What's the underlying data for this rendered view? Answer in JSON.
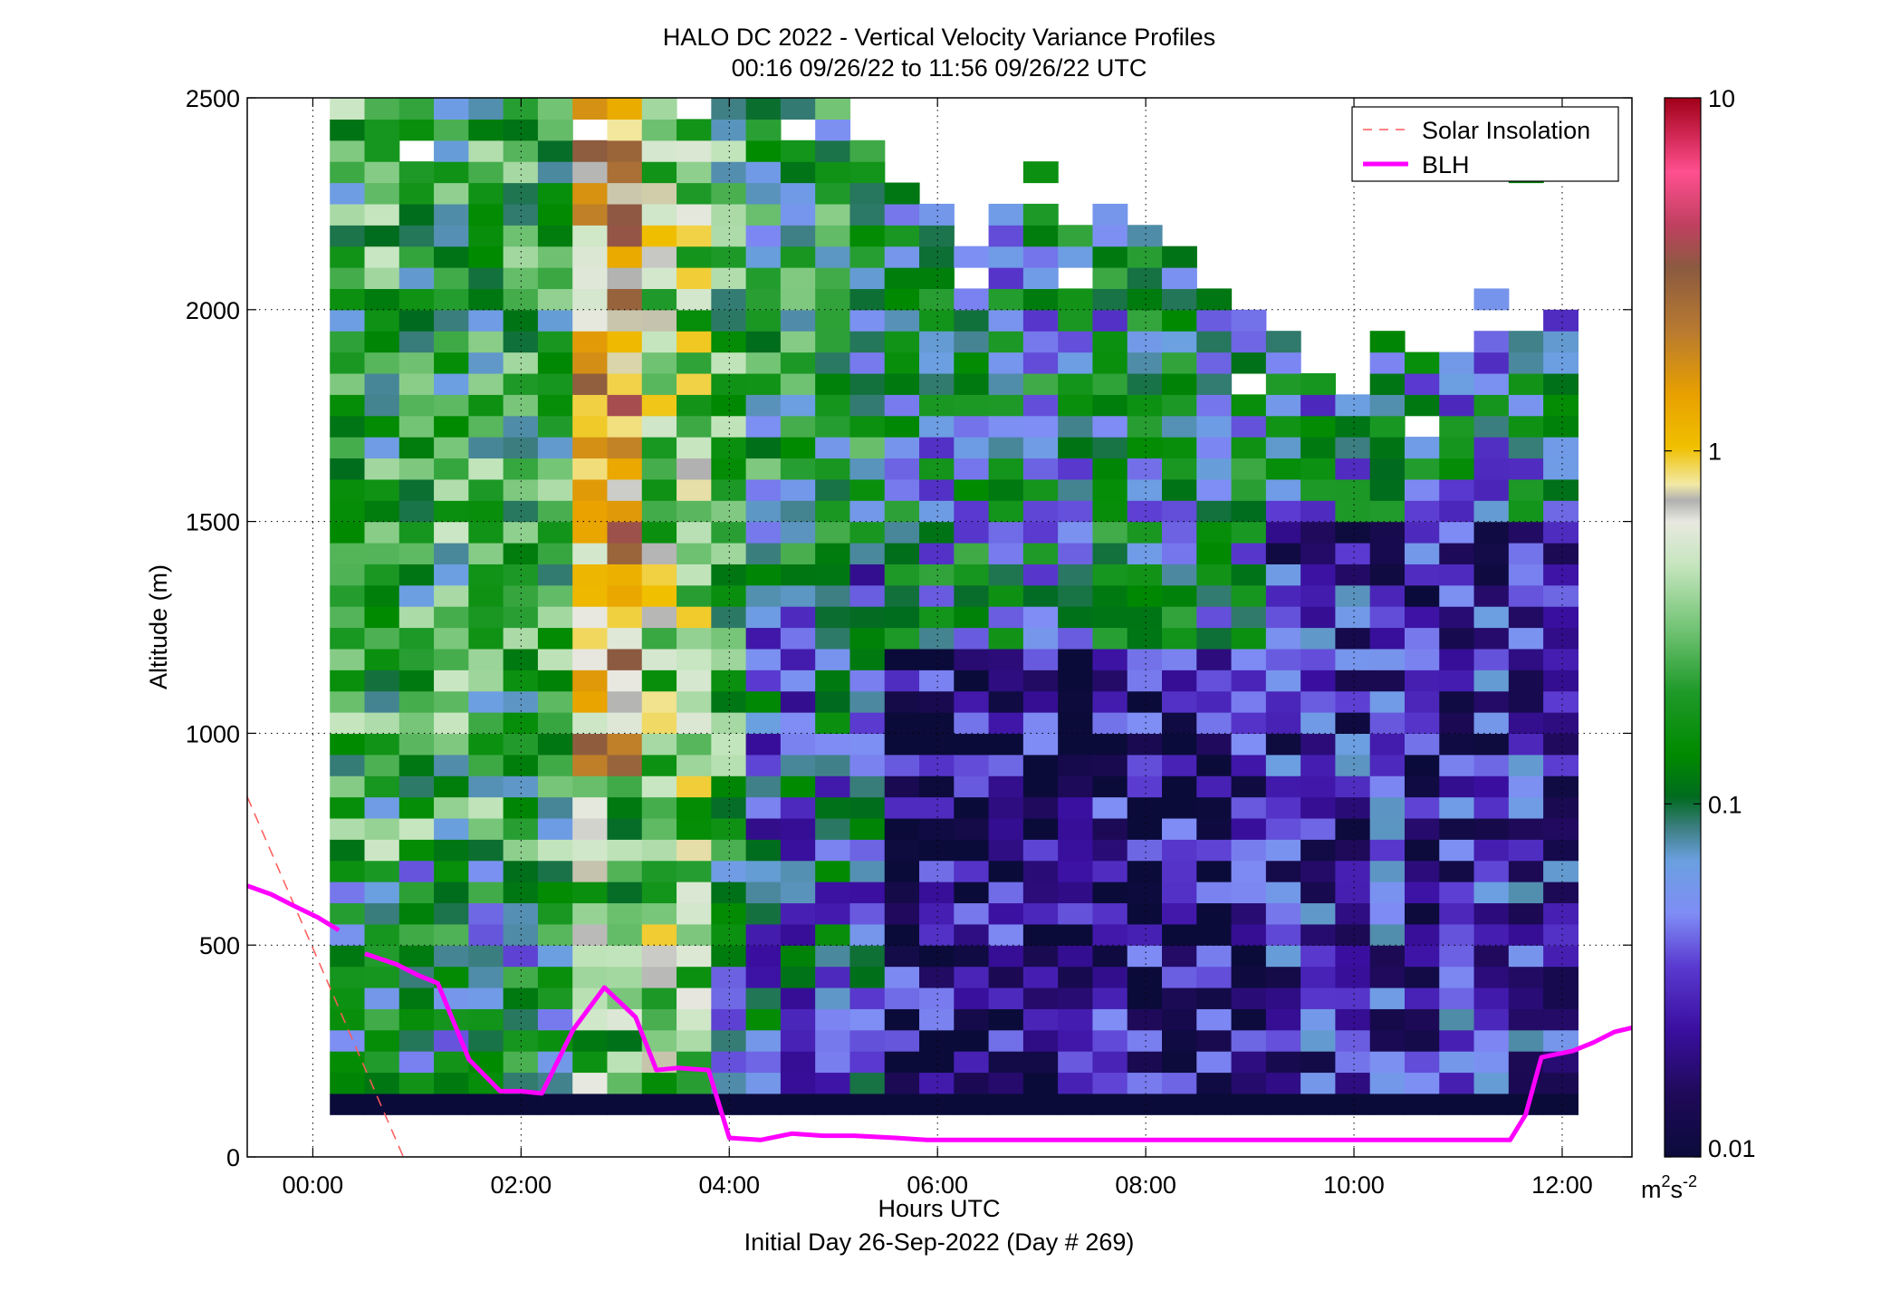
{
  "title": "HALO DC 2022 - Vertical Velocity Variance Profiles",
  "subtitle": "00:16 09/26/22 to 11:56 09/26/22  UTC",
  "footer": "Initial Day 26-Sep-2022 (Day # 269)",
  "chart_data": {
    "type": "heatmap",
    "xlabel": "Hours UTC",
    "ylabel": "Altitude (m)",
    "x_ticks": [
      "00:00",
      "02:00",
      "04:00",
      "06:00",
      "08:00",
      "10:00",
      "12:00"
    ],
    "x_tick_values": [
      0,
      2,
      4,
      6,
      8,
      10,
      12
    ],
    "xlim": [
      -0.63,
      12.67
    ],
    "ylim": [
      0,
      2500
    ],
    "y_ticks": [
      0,
      500,
      1000,
      1500,
      2000,
      2500
    ],
    "grid": true,
    "legend_position": "top-right",
    "colorbar": {
      "scale": "log",
      "range": [
        0.01,
        10
      ],
      "tick_labels": [
        "0.01",
        "0.1",
        "1",
        "10"
      ],
      "units_label": "m",
      "units_sup1": "2",
      "units_mid": "s",
      "units_sup2": "-2"
    },
    "heatmap": {
      "description": "vertical velocity variance on a time-altitude grid; log10 of variance in m2 s-2",
      "time_step_hours": 0.333,
      "altitude_step_m": 50,
      "first_time": 0.33,
      "last_time": 11.97,
      "base_altitude": 100,
      "top_altitude": 2500
    },
    "series": [
      {
        "name": "Solar Insolation",
        "style": "dashed",
        "color": "#ff5a5a",
        "x": [
          -0.63,
          0.87
        ],
        "y": [
          850,
          0
        ]
      },
      {
        "name": "BLH",
        "style": "solid",
        "color": "#ff00ff",
        "segments": [
          {
            "x": [
              -0.63,
              -0.4,
              -0.2,
              0.05,
              0.25
            ],
            "y": [
              640,
              620,
              595,
              565,
              535
            ]
          },
          {
            "x": [
              0.5,
              0.8,
              1.0,
              1.2,
              1.5,
              1.8,
              2.0,
              2.2,
              2.5,
              2.8,
              3.1,
              3.3,
              3.5,
              3.8,
              4.0,
              4.3,
              4.6,
              4.9,
              5.2,
              5.6,
              5.9,
              6.4,
              7.0,
              8.0,
              9.0,
              10.0,
              11.0,
              11.5,
              11.65,
              11.8,
              12.1,
              12.3,
              12.5,
              12.67
            ],
            "y": [
              480,
              455,
              430,
              410,
              230,
              155,
              155,
              150,
              300,
              400,
              330,
              205,
              210,
              205,
              45,
              40,
              55,
              50,
              50,
              45,
              40,
              40,
              40,
              40,
              40,
              40,
              40,
              40,
              100,
              235,
              250,
              270,
              295,
              305
            ]
          }
        ]
      }
    ]
  }
}
